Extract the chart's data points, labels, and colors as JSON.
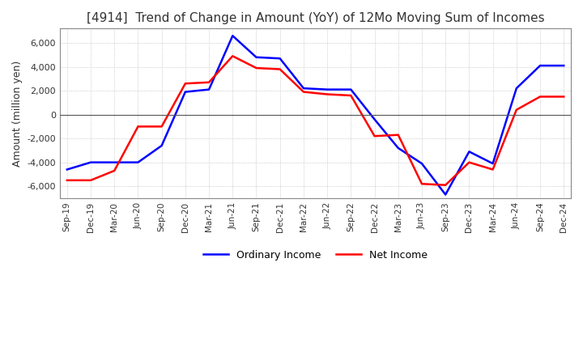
{
  "title": "[4914]  Trend of Change in Amount (YoY) of 12Mo Moving Sum of Incomes",
  "ylabel": "Amount (million yen)",
  "ylim": [
    -7000,
    7200
  ],
  "yticks": [
    -6000,
    -4000,
    -2000,
    0,
    2000,
    4000,
    6000
  ],
  "x_labels": [
    "Sep-19",
    "Dec-19",
    "Mar-20",
    "Jun-20",
    "Sep-20",
    "Dec-20",
    "Mar-21",
    "Jun-21",
    "Sep-21",
    "Dec-21",
    "Mar-22",
    "Jun-22",
    "Sep-22",
    "Dec-22",
    "Mar-23",
    "Jun-23",
    "Sep-23",
    "Dec-23",
    "Mar-24",
    "Jun-24",
    "Sep-24",
    "Dec-24"
  ],
  "ordinary_income": [
    -4600,
    -4000,
    -4000,
    -4000,
    -2600,
    1900,
    2100,
    6600,
    4800,
    4700,
    2200,
    2100,
    2100,
    -400,
    -2800,
    -4100,
    -6700,
    -3100,
    -4100,
    2200,
    4100,
    4100
  ],
  "net_income": [
    -5500,
    -5500,
    -4700,
    -1000,
    -1000,
    2600,
    2700,
    4900,
    3900,
    3800,
    1900,
    1700,
    1600,
    -1800,
    -1700,
    -5800,
    -5900,
    -4000,
    -4600,
    400,
    1500,
    1500
  ],
  "ordinary_color": "#0000ff",
  "net_color": "#ff0000",
  "grid_color": "#bbbbbb",
  "background_color": "#ffffff",
  "title_color": "#333333",
  "legend_labels": [
    "Ordinary Income",
    "Net Income"
  ]
}
